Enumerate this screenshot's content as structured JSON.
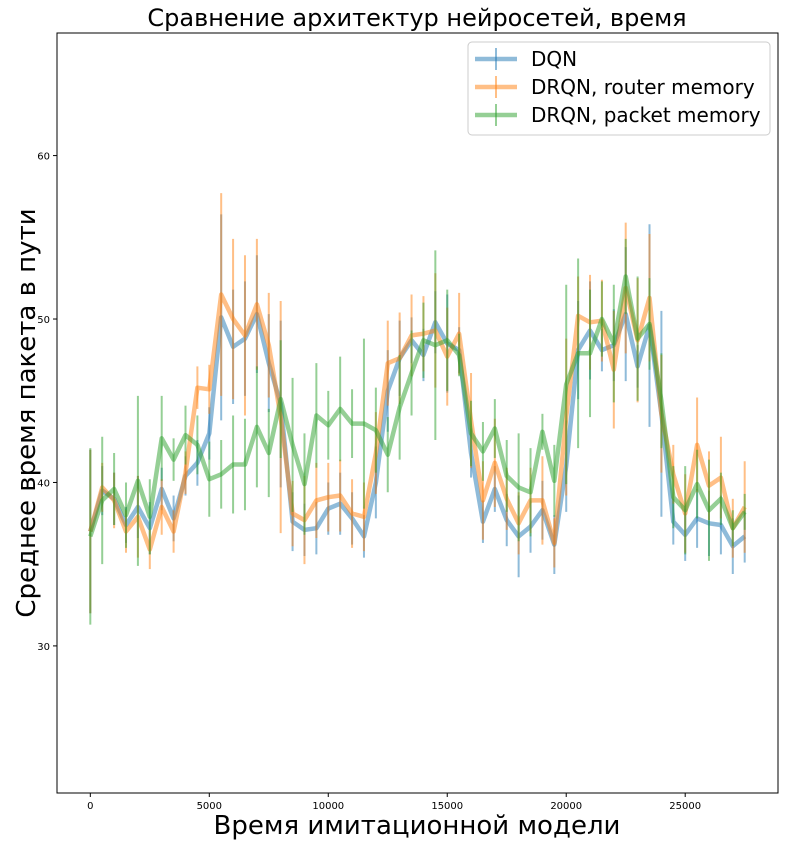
{
  "chart_data": {
    "type": "line",
    "title": "Сравнение архитектур нейросетей, время",
    "xlabel": "Время имитационной модели",
    "ylabel": "Среднее время пакета в пути",
    "xlim": [
      -1400,
      28900
    ],
    "ylim": [
      21,
      67.5
    ],
    "xticks": [
      0,
      5000,
      10000,
      15000,
      20000,
      25000
    ],
    "yticks": [
      30,
      40,
      50,
      60
    ],
    "grid": false,
    "legend_position": "top-right",
    "x": [
      0,
      500,
      1000,
      1500,
      2000,
      2500,
      3000,
      3500,
      4000,
      4500,
      5000,
      5500,
      6000,
      6500,
      7000,
      7500,
      8000,
      8500,
      9000,
      9500,
      10000,
      10500,
      11000,
      11500,
      12000,
      12500,
      13000,
      13500,
      14000,
      14500,
      15000,
      15500,
      16000,
      16500,
      17000,
      17500,
      18000,
      18500,
      19000,
      19500,
      20000,
      20500,
      21000,
      21500,
      22000,
      22500,
      23000,
      23500,
      24000,
      24500,
      25000,
      25500,
      26000,
      26500,
      27000,
      27500
    ],
    "series": [
      {
        "name": "DQN",
        "color": "#1f77b4",
        "values": [
          37.0,
          39.5,
          39.0,
          37.4,
          38.5,
          37.2,
          39.6,
          37.8,
          40.4,
          41.2,
          43.0,
          50.1,
          48.3,
          48.8,
          50.3,
          47.3,
          44.8,
          37.6,
          37.1,
          37.2,
          38.4,
          38.7,
          37.8,
          36.7,
          40.0,
          45.6,
          47.6,
          48.7,
          47.8,
          49.8,
          48.5,
          48.1,
          41.8,
          37.6,
          39.6,
          37.7,
          36.7,
          37.3,
          38.3,
          36.2,
          41.0,
          48.1,
          49.3,
          48.1,
          48.4,
          50.3,
          47.1,
          49.6,
          44.2,
          37.6,
          36.8,
          37.8,
          37.5,
          37.4,
          36.1,
          36.7
        ],
        "errors": [
          5.0,
          1.5,
          1.6,
          1.1,
          1.9,
          1.6,
          1.3,
          1.4,
          1.2,
          1.4,
          1.6,
          6.3,
          3.5,
          3.5,
          3.6,
          3.0,
          5.1,
          1.8,
          1.6,
          1.6,
          1.6,
          1.9,
          1.6,
          1.3,
          2.2,
          2.5,
          2.3,
          1.4,
          1.6,
          1.9,
          3.0,
          1.4,
          1.5,
          1.3,
          1.4,
          1.6,
          2.5,
          1.6,
          1.8,
          1.8,
          2.8,
          3.0,
          3.0,
          1.3,
          2.2,
          4.1,
          1.3,
          6.2,
          6.3,
          1.4,
          1.6,
          1.8,
          2.0,
          1.8,
          1.7,
          1.6
        ]
      },
      {
        "name": "DRQN, router memory",
        "color": "#ff7f0e",
        "values": [
          37.0,
          39.7,
          38.9,
          37.0,
          37.9,
          35.9,
          38.5,
          37.0,
          40.6,
          45.8,
          45.7,
          51.5,
          50.0,
          49.0,
          50.9,
          48.4,
          44.0,
          38.1,
          37.7,
          38.9,
          39.1,
          39.2,
          38.1,
          37.9,
          41.8,
          47.3,
          47.6,
          49.0,
          49.1,
          49.3,
          47.7,
          49.1,
          43.8,
          38.9,
          41.2,
          39.0,
          37.5,
          38.9,
          38.9,
          36.3,
          44.0,
          50.2,
          49.8,
          49.9,
          46.9,
          51.9,
          48.7,
          51.3,
          44.2,
          40.5,
          38.1,
          42.3,
          39.8,
          40.3,
          37.2,
          38.5
        ],
        "errors": [
          5.0,
          1.5,
          1.7,
          1.3,
          2.5,
          1.2,
          1.7,
          1.3,
          1.3,
          1.3,
          1.5,
          6.2,
          4.9,
          4.9,
          4.0,
          3.2,
          7.1,
          2.0,
          2.7,
          2.3,
          2.1,
          2.2,
          2.1,
          2.1,
          2.5,
          2.6,
          2.8,
          2.5,
          2.3,
          3.5,
          3.0,
          2.5,
          2.9,
          2.4,
          2.7,
          1.9,
          1.9,
          2.0,
          2.7,
          1.5,
          4.8,
          2.4,
          2.9,
          2.5,
          3.6,
          4.0,
          3.8,
          3.9,
          3.6,
          1.8,
          2.4,
          2.9,
          2.1,
          2.5,
          1.8,
          2.8
        ]
      },
      {
        "name": "DRQN, packet memory",
        "color": "#2ca02c",
        "values": [
          36.7,
          38.9,
          39.6,
          38.0,
          40.1,
          37.9,
          42.7,
          41.4,
          42.9,
          42.3,
          40.2,
          40.5,
          41.1,
          41.1,
          43.4,
          41.8,
          45.1,
          42.3,
          39.9,
          44.1,
          43.5,
          44.5,
          43.6,
          43.6,
          43.2,
          41.7,
          44.6,
          46.7,
          48.7,
          48.4,
          48.7,
          47.8,
          43.0,
          41.9,
          43.3,
          40.4,
          39.7,
          39.4,
          43.1,
          40.1,
          46.0,
          47.9,
          47.9,
          50.0,
          48.5,
          52.6,
          48.8,
          49.7,
          45.0,
          39.1,
          38.3,
          39.9,
          38.3,
          39.0,
          37.2,
          38.2
        ],
        "errors": [
          5.4,
          3.9,
          2.2,
          2.0,
          5.2,
          2.3,
          2.6,
          1.3,
          1.8,
          1.8,
          2.3,
          2.1,
          3.0,
          2.8,
          3.7,
          2.7,
          3.6,
          4.1,
          3.1,
          3.2,
          2.1,
          3.2,
          2.1,
          5.2,
          2.6,
          2.3,
          3.2,
          2.6,
          2.3,
          5.8,
          3.1,
          1.3,
          2.0,
          1.8,
          1.8,
          2.2,
          3.3,
          2.7,
          1.1,
          2.2,
          6.1,
          5.8,
          3.9,
          2.3,
          3.6,
          2.3,
          3.8,
          2.8,
          2.9,
          1.9,
          2.7,
          2.1,
          3.1,
          1.6,
          1.1,
          1.1
        ]
      }
    ]
  }
}
